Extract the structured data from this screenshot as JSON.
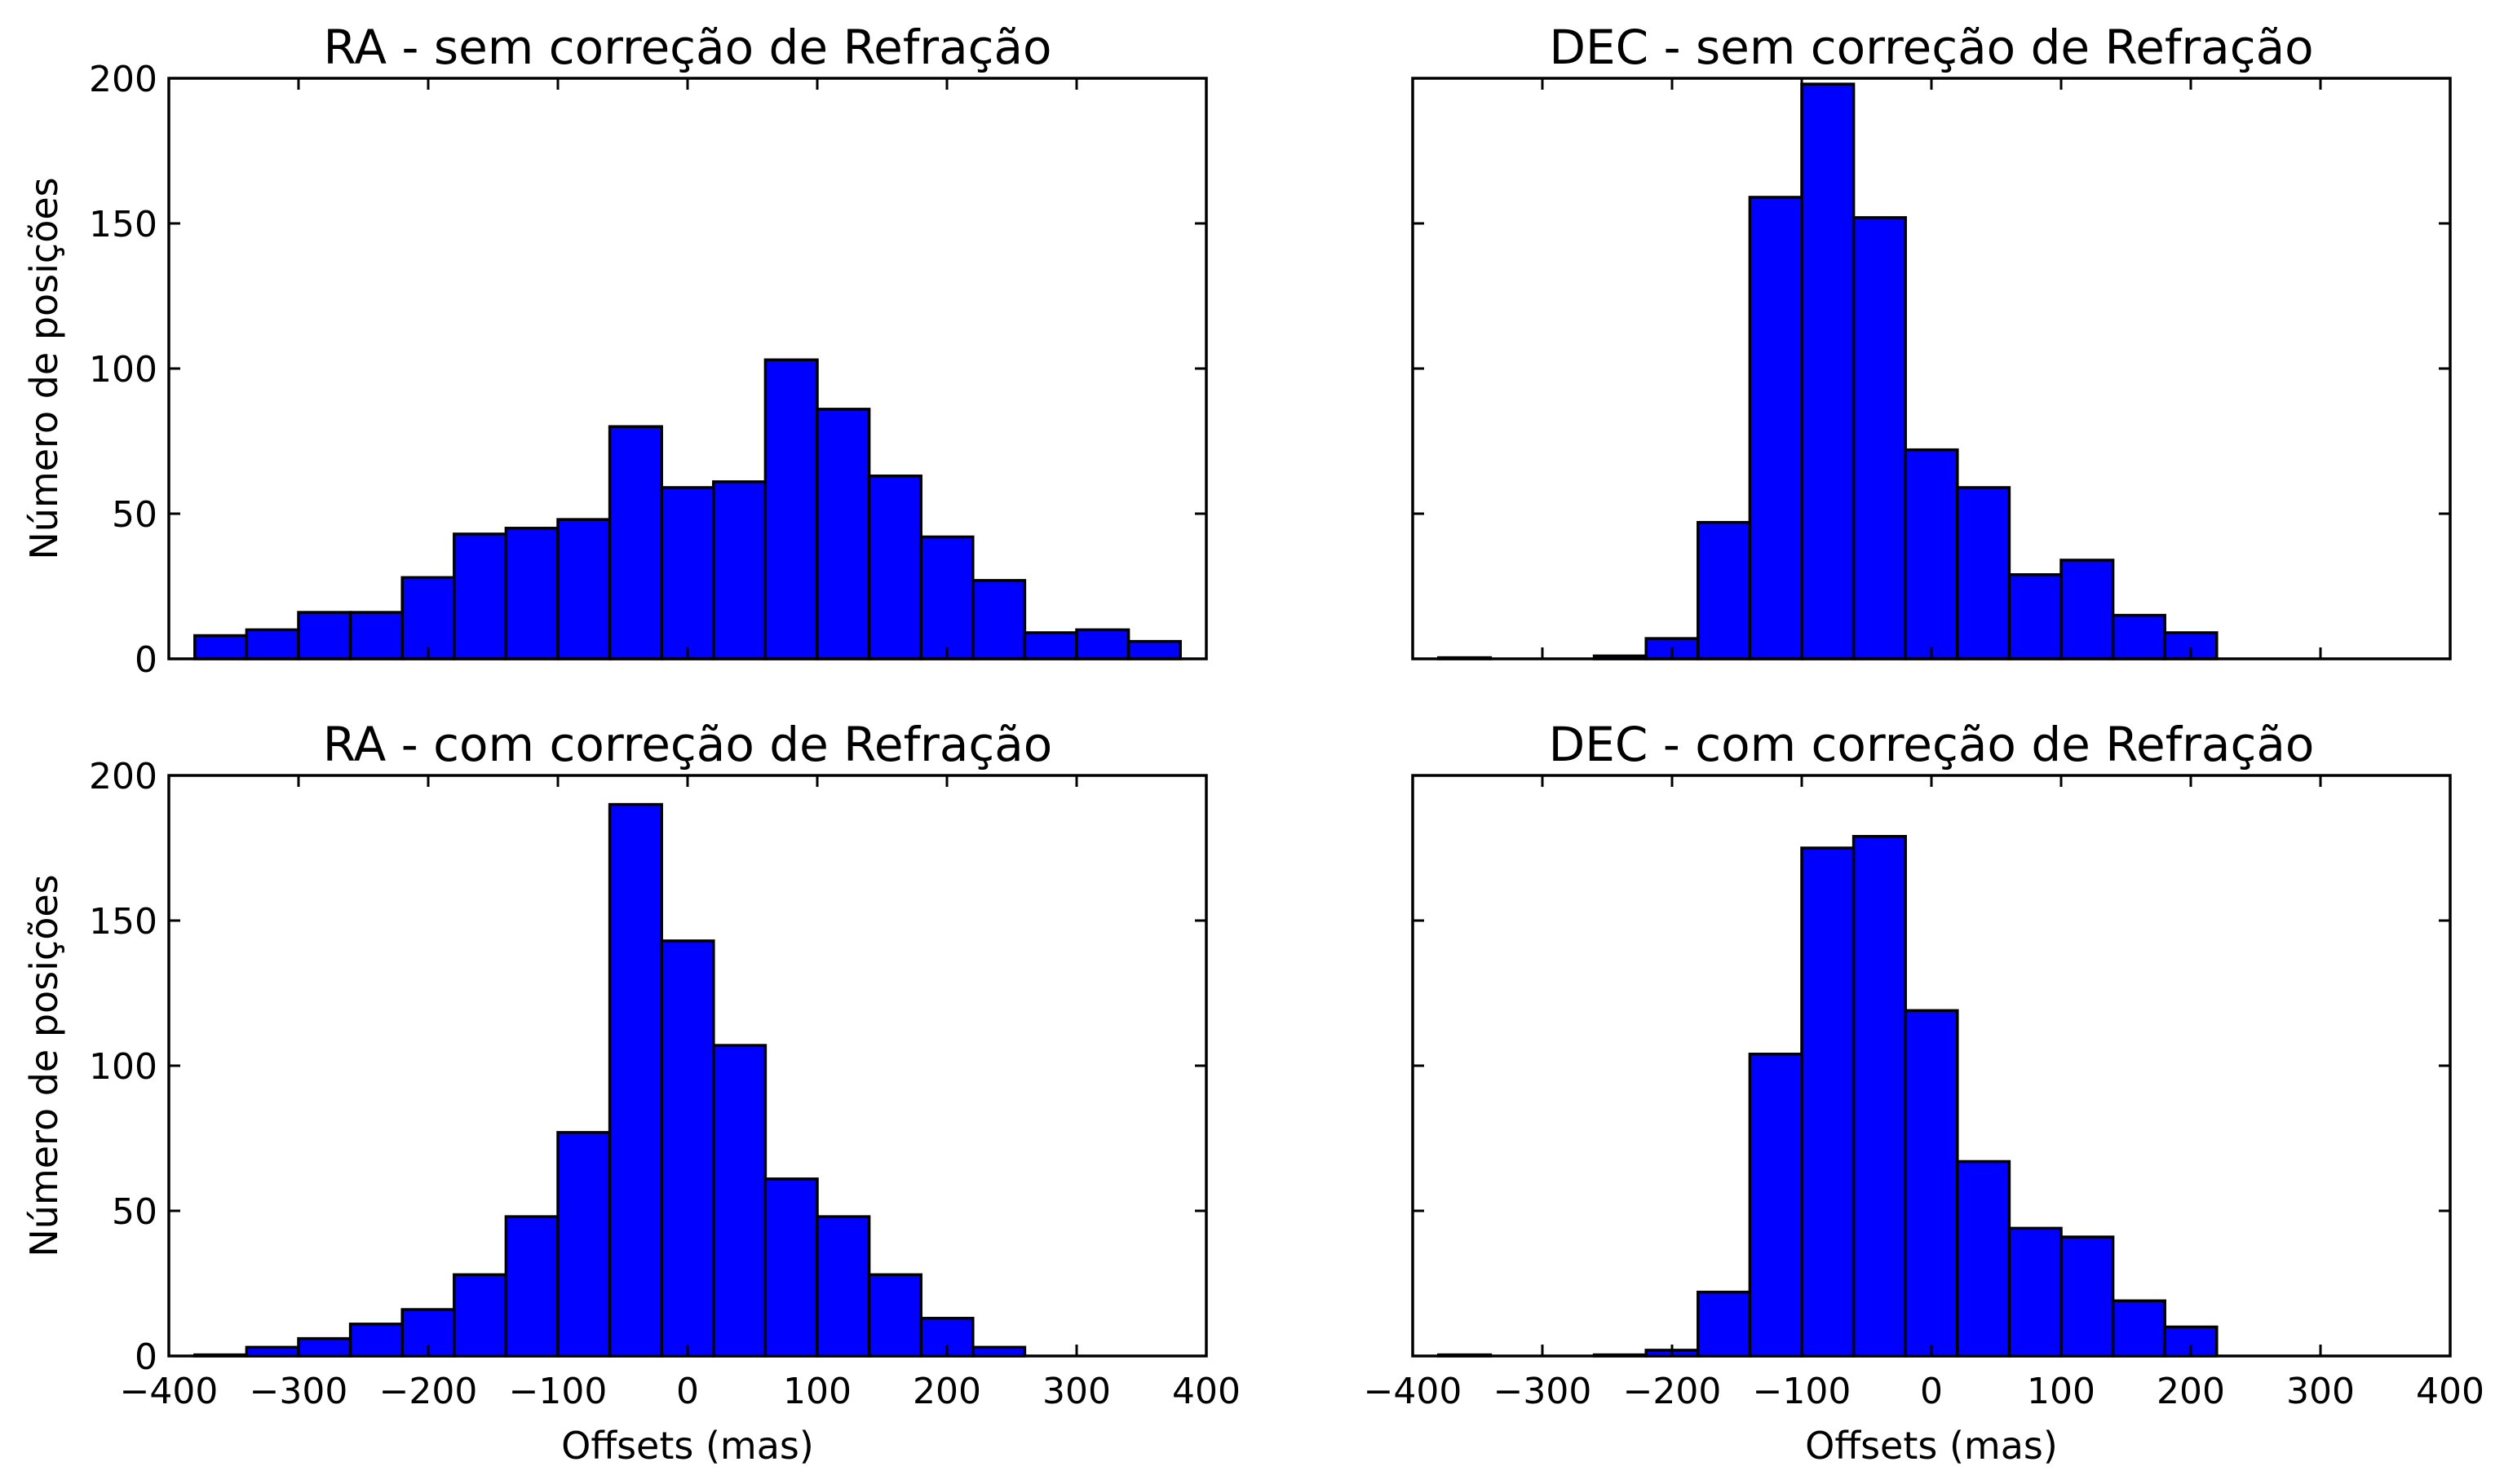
{
  "style": {
    "bar_color": "#0000ff",
    "edge_color": "#000000"
  },
  "chart_data": [
    {
      "type": "bar",
      "title": "RA - sem correção de Refração",
      "ylabel": "Número de posições",
      "xlabel": "",
      "xlim": [
        -400,
        400
      ],
      "ylim": [
        0,
        200
      ],
      "xticks": [
        -400,
        -300,
        -200,
        -100,
        0,
        100,
        200,
        300,
        400
      ],
      "xtick_labels_shown": false,
      "yticks": [
        0,
        50,
        100,
        150,
        200
      ],
      "ytick_labels_shown": true,
      "bin_edges": [
        -380,
        -340,
        -300,
        -260,
        -220,
        -180,
        -140,
        -100,
        -60,
        -20,
        20,
        60,
        100,
        140,
        180,
        220,
        260,
        300,
        340,
        380
      ],
      "values": [
        8,
        10,
        16,
        16,
        28,
        43,
        45,
        48,
        80,
        59,
        61,
        103,
        86,
        63,
        42,
        27,
        9,
        10,
        6
      ]
    },
    {
      "type": "bar",
      "title": "DEC - sem correção de Refração",
      "ylabel": "",
      "xlabel": "",
      "xlim": [
        -400,
        400
      ],
      "ylim": [
        0,
        200
      ],
      "xticks": [
        -400,
        -300,
        -200,
        -100,
        0,
        100,
        200,
        300,
        400
      ],
      "xtick_labels_shown": false,
      "yticks": [
        0,
        50,
        100,
        150,
        200
      ],
      "ytick_labels_shown": false,
      "bin_edges": [
        -380,
        -340,
        -300,
        -260,
        -220,
        -180,
        -140,
        -100,
        -60,
        -20,
        20,
        60,
        100,
        140,
        180,
        220,
        260,
        300,
        340,
        380
      ],
      "values": [
        0.4,
        0,
        0,
        1,
        7,
        47,
        159,
        198,
        152,
        72,
        59,
        29,
        34,
        15,
        9,
        0,
        0,
        0,
        0
      ]
    },
    {
      "type": "bar",
      "title": "RA - com correção de Refração",
      "ylabel": "Número de posições",
      "xlabel": "Offsets (mas)",
      "xlim": [
        -400,
        400
      ],
      "ylim": [
        0,
        200
      ],
      "xticks": [
        -400,
        -300,
        -200,
        -100,
        0,
        100,
        200,
        300,
        400
      ],
      "xtick_labels_shown": true,
      "yticks": [
        0,
        50,
        100,
        150,
        200
      ],
      "ytick_labels_shown": true,
      "bin_edges": [
        -380,
        -340,
        -300,
        -260,
        -220,
        -180,
        -140,
        -100,
        -60,
        -20,
        20,
        60,
        100,
        140,
        180,
        220,
        260,
        300,
        340,
        380
      ],
      "values": [
        0.4,
        3,
        6,
        11,
        16,
        28,
        48,
        77,
        190,
        143,
        107,
        61,
        48,
        28,
        13,
        3,
        0,
        0,
        0
      ]
    },
    {
      "type": "bar",
      "title": "DEC - com correção de Refração",
      "ylabel": "",
      "xlabel": "Offsets (mas)",
      "xlim": [
        -400,
        400
      ],
      "ylim": [
        0,
        200
      ],
      "xticks": [
        -400,
        -300,
        -200,
        -100,
        0,
        100,
        200,
        300,
        400
      ],
      "xtick_labels_shown": true,
      "yticks": [
        0,
        50,
        100,
        150,
        200
      ],
      "ytick_labels_shown": false,
      "bin_edges": [
        -380,
        -340,
        -300,
        -260,
        -220,
        -180,
        -140,
        -100,
        -60,
        -20,
        20,
        60,
        100,
        140,
        180,
        220,
        260,
        300,
        340,
        380
      ],
      "values": [
        0.4,
        0,
        0,
        0.4,
        2,
        22,
        104,
        175,
        179,
        119,
        67,
        44,
        41,
        19,
        10,
        0,
        0,
        0,
        0
      ]
    }
  ]
}
